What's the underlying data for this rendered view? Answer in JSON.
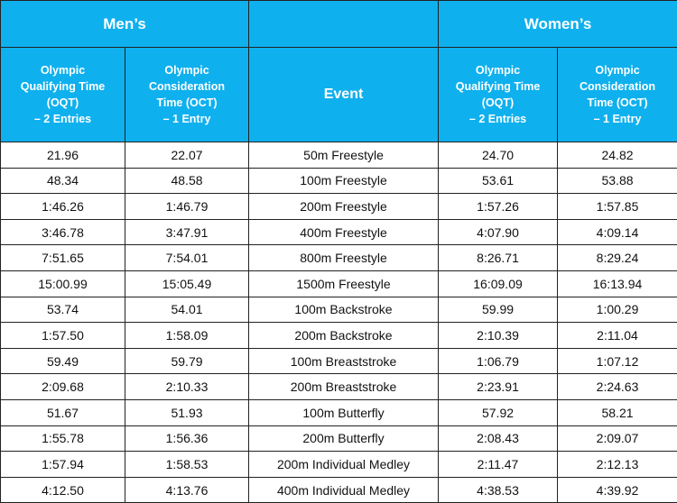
{
  "groups": [
    "Men’s",
    "Women’s"
  ],
  "columns": [
    [
      "Olympic",
      "Qualifying Time",
      "(OQT)",
      "– 2 Entries"
    ],
    [
      "Olympic",
      "Consideration",
      "Time (OCT)",
      "– 1 Entry"
    ],
    [
      "Event"
    ],
    [
      "Olympic",
      "Qualifying Time",
      "(OQT)",
      "– 2 Entries"
    ],
    [
      "Olympic",
      "Consideration",
      "Time (OCT)",
      "– 1 Entry"
    ]
  ],
  "rows": [
    [
      "21.96",
      "22.07",
      "50m Freestyle",
      "24.70",
      "24.82"
    ],
    [
      "48.34",
      "48.58",
      "100m Freestyle",
      "53.61",
      "53.88"
    ],
    [
      "1:46.26",
      "1:46.79",
      "200m Freestyle",
      "1:57.26",
      "1:57.85"
    ],
    [
      "3:46.78",
      "3:47.91",
      "400m Freestyle",
      "4:07.90",
      "4:09.14"
    ],
    [
      "7:51.65",
      "7:54.01",
      "800m Freestyle",
      "8:26.71",
      "8:29.24"
    ],
    [
      "15:00.99",
      "15:05.49",
      "1500m Freestyle",
      "16:09.09",
      "16:13.94"
    ],
    [
      "53.74",
      "54.01",
      "100m Backstroke",
      "59.99",
      "1:00.29"
    ],
    [
      "1:57.50",
      "1:58.09",
      "200m Backstroke",
      "2:10.39",
      "2:11.04"
    ],
    [
      "59.49",
      "59.79",
      "100m Breaststroke",
      "1:06.79",
      "1:07.12"
    ],
    [
      "2:09.68",
      "2:10.33",
      "200m Breaststroke",
      "2:23.91",
      "2:24.63"
    ],
    [
      "51.67",
      "51.93",
      "100m Butterfly",
      "57.92",
      "58.21"
    ],
    [
      "1:55.78",
      "1:56.36",
      "200m Butterfly",
      "2:08.43",
      "2:09.07"
    ],
    [
      "1:57.94",
      "1:58.53",
      "200m Individual Medley",
      "2:11.47",
      "2:12.13"
    ],
    [
      "4:12.50",
      "4:13.76",
      "400m Individual Medley",
      "4:38.53",
      "4:39.92"
    ]
  ]
}
